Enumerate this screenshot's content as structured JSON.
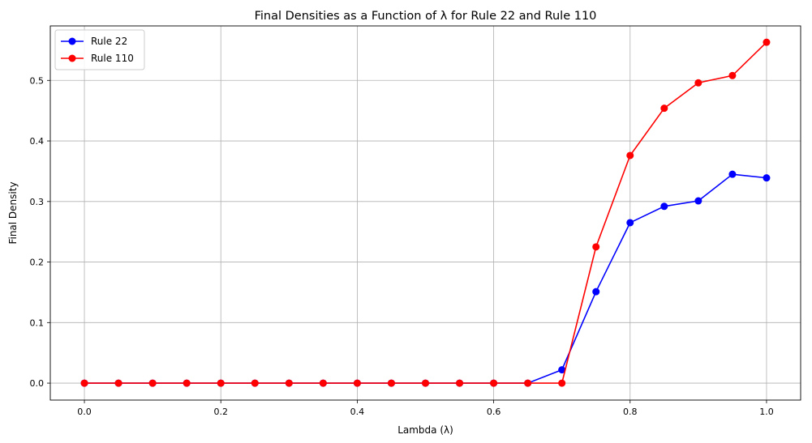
{
  "chart_data": {
    "type": "line",
    "title": "Final Densities as a Function of λ for Rule 22 and Rule 110",
    "xlabel": "Lambda (λ)",
    "ylabel": "Final Density",
    "xlim": [
      -0.05,
      1.05
    ],
    "ylim": [
      -0.028,
      0.59
    ],
    "xticks": [
      0.0,
      0.2,
      0.4,
      0.6,
      0.8,
      1.0
    ],
    "xtick_labels": [
      "0.0",
      "0.2",
      "0.4",
      "0.6",
      "0.8",
      "1.0"
    ],
    "yticks": [
      0.0,
      0.1,
      0.2,
      0.3,
      0.4,
      0.5
    ],
    "ytick_labels": [
      "0.0",
      "0.1",
      "0.2",
      "0.3",
      "0.4",
      "0.5"
    ],
    "grid": true,
    "legend_position": "top-left",
    "x": [
      0.0,
      0.05,
      0.1,
      0.15,
      0.2,
      0.25,
      0.3,
      0.35,
      0.4,
      0.45,
      0.5,
      0.55,
      0.6,
      0.65,
      0.7,
      0.75,
      0.8,
      0.85,
      0.9,
      0.95,
      1.0
    ],
    "series": [
      {
        "name": "Rule 22",
        "color": "#0000ff",
        "values": [
          0,
          0,
          0,
          0,
          0,
          0,
          0,
          0,
          0,
          0,
          0,
          0,
          0,
          0,
          0.022,
          0.151,
          0.265,
          0.292,
          0.301,
          0.345,
          0.339
        ]
      },
      {
        "name": "Rule 110",
        "color": "#ff0000",
        "values": [
          0,
          0,
          0,
          0,
          0,
          0,
          0,
          0,
          0,
          0,
          0,
          0,
          0,
          0,
          0,
          0.225,
          0.376,
          0.454,
          0.496,
          0.508,
          0.563
        ]
      }
    ]
  }
}
